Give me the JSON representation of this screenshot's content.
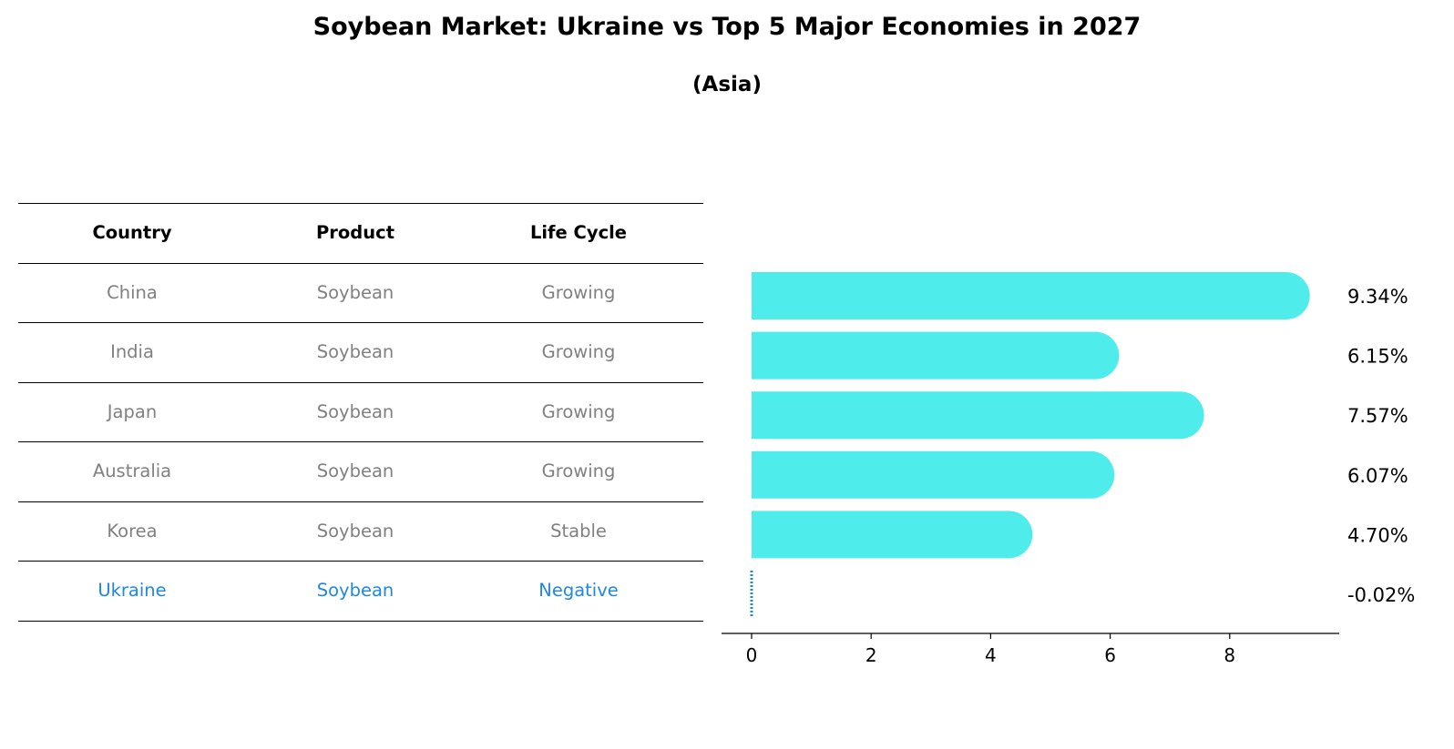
{
  "title": "Soybean Market: Ukraine vs Top 5 Major Economies in 2027",
  "subtitle": "(Asia)",
  "table": {
    "headers": [
      "Country",
      "Product",
      "Life Cycle"
    ],
    "rows": [
      [
        "China",
        "Soybean",
        "Growing"
      ],
      [
        "India",
        "Soybean",
        "Growing"
      ],
      [
        "Japan",
        "Soybean",
        "Growing"
      ],
      [
        "Australia",
        "Soybean",
        "Growing"
      ],
      [
        "Korea",
        "Soybean",
        "Stable"
      ],
      [
        "Ukraine",
        "Soybean",
        "Negative"
      ]
    ],
    "highlight_row": 5
  },
  "colors": {
    "bar": "#4eeceb",
    "highlight": "#1e88e5",
    "muted_text": "#808080"
  },
  "chart_data": {
    "type": "bar",
    "orientation": "horizontal",
    "categories": [
      "China",
      "India",
      "Japan",
      "Australia",
      "Korea",
      "Ukraine"
    ],
    "values": [
      9.34,
      6.15,
      7.57,
      6.07,
      4.7,
      -0.02
    ],
    "value_labels": [
      "9.34%",
      "6.15%",
      "7.57%",
      "6.07%",
      "4.70%",
      "-0.02%"
    ],
    "xticks": [
      0,
      2,
      4,
      6,
      8
    ],
    "xlim": [
      -0.5,
      9.8
    ],
    "xlabel": "",
    "ylabel": "",
    "grid": false
  }
}
